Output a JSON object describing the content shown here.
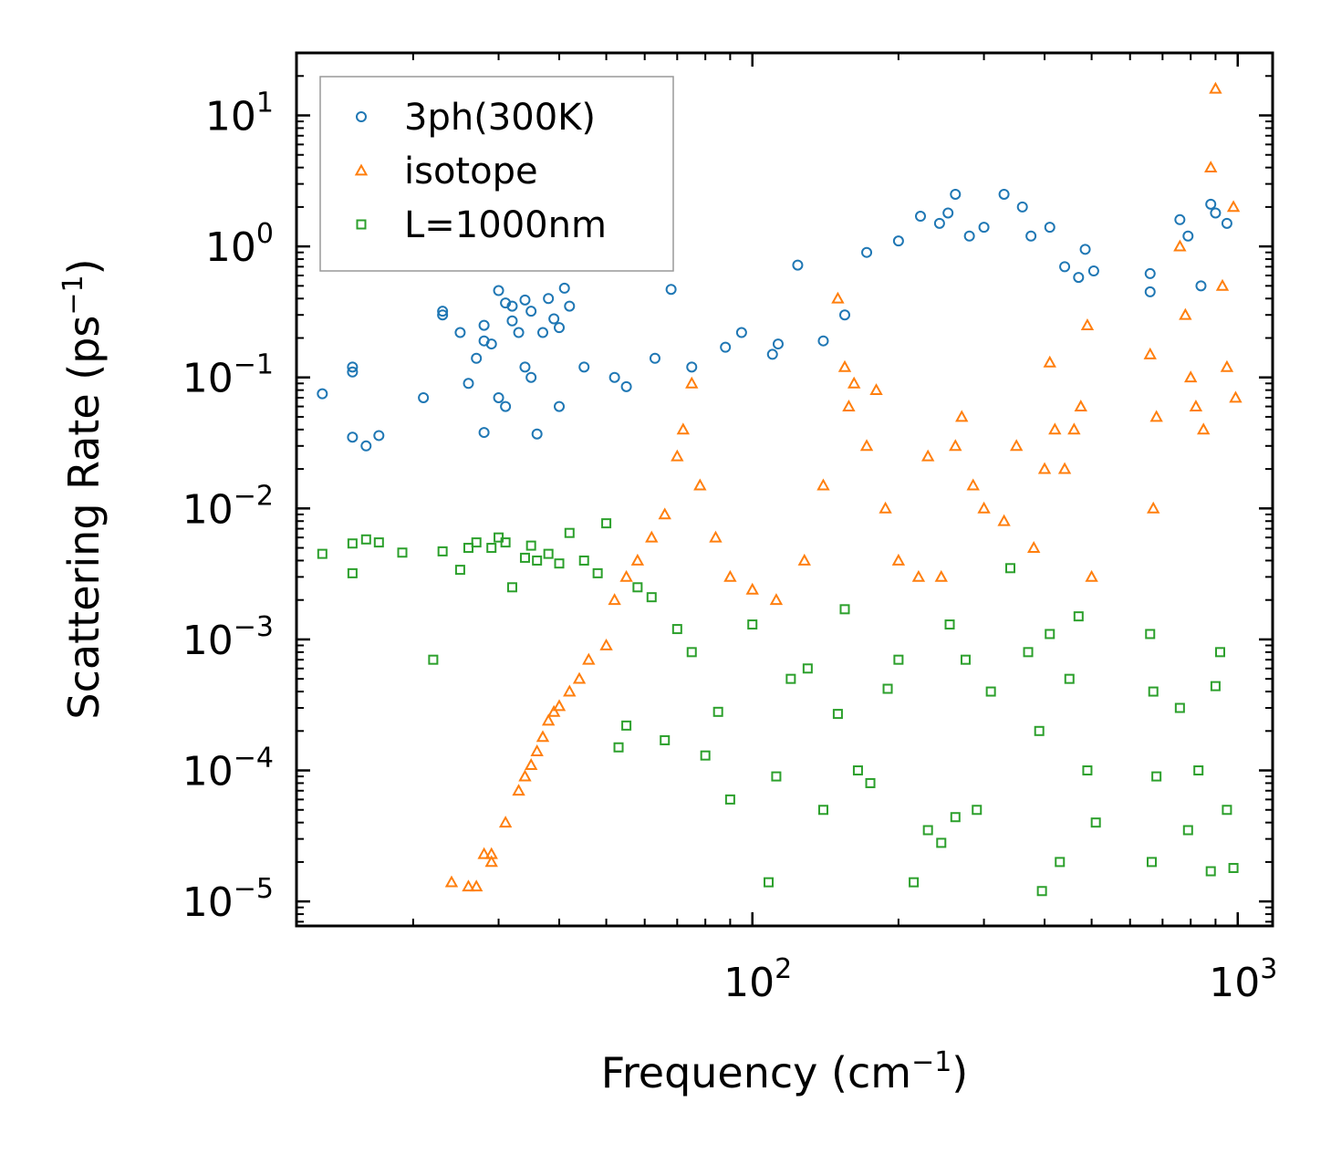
{
  "chart_data": {
    "type": "scatter",
    "xscale": "log",
    "yscale": "log",
    "xlabel": "Frequency (cm",
    "xlabel_sup": "−1",
    "xlabel_tail": ")",
    "ylabel": "Scattering Rate (ps",
    "ylabel_sup": "−1",
    "ylabel_tail": ")",
    "xlim": [
      11.5,
      1180
    ],
    "ylim": [
      6.5e-06,
      30
    ],
    "x_ticks": [
      {
        "value": 100,
        "base": "10",
        "exp": "2"
      },
      {
        "value": 1000,
        "base": "10",
        "exp": "3"
      }
    ],
    "y_ticks": [
      {
        "value": 10,
        "base": "10",
        "exp": "1"
      },
      {
        "value": 1,
        "base": "10",
        "exp": "0"
      },
      {
        "value": 0.1,
        "base": "10",
        "exp": "−1"
      },
      {
        "value": 0.01,
        "base": "10",
        "exp": "−2"
      },
      {
        "value": 0.001,
        "base": "10",
        "exp": "−3"
      },
      {
        "value": 0.0001,
        "base": "10",
        "exp": "−4"
      },
      {
        "value": 1e-05,
        "base": "10",
        "exp": "−5"
      }
    ],
    "legend_position": "top-left",
    "series": [
      {
        "name": "3ph(300K)",
        "marker": "circle",
        "color": "#1f77b4",
        "points": [
          [
            13,
            0.075
          ],
          [
            15,
            0.12
          ],
          [
            15,
            0.11
          ],
          [
            15,
            0.035
          ],
          [
            16,
            0.03
          ],
          [
            17,
            0.036
          ],
          [
            21,
            0.07
          ],
          [
            23,
            0.3
          ],
          [
            23,
            0.32
          ],
          [
            25,
            0.22
          ],
          [
            26,
            0.09
          ],
          [
            27,
            0.14
          ],
          [
            28,
            0.25
          ],
          [
            28,
            0.038
          ],
          [
            28,
            0.19
          ],
          [
            29,
            0.18
          ],
          [
            30,
            0.07
          ],
          [
            30,
            0.46
          ],
          [
            31,
            0.06
          ],
          [
            31,
            0.37
          ],
          [
            32,
            0.35
          ],
          [
            32,
            0.27
          ],
          [
            33,
            0.22
          ],
          [
            34,
            0.39
          ],
          [
            34,
            0.12
          ],
          [
            35,
            0.1
          ],
          [
            35,
            0.32
          ],
          [
            36,
            0.037
          ],
          [
            37,
            0.22
          ],
          [
            38,
            0.4
          ],
          [
            39,
            0.28
          ],
          [
            40,
            0.24
          ],
          [
            40,
            0.06
          ],
          [
            41,
            0.48
          ],
          [
            42,
            0.35
          ],
          [
            45,
            0.12
          ],
          [
            52,
            0.1
          ],
          [
            55,
            0.085
          ],
          [
            63,
            0.14
          ],
          [
            68,
            0.47
          ],
          [
            75,
            0.12
          ],
          [
            88,
            0.17
          ],
          [
            95,
            0.22
          ],
          [
            110,
            0.15
          ],
          [
            113,
            0.18
          ],
          [
            124,
            0.72
          ],
          [
            140,
            0.19
          ],
          [
            155,
            0.3
          ],
          [
            172,
            0.9
          ],
          [
            200,
            1.1
          ],
          [
            222,
            1.7
          ],
          [
            243,
            1.5
          ],
          [
            253,
            1.8
          ],
          [
            262,
            2.5
          ],
          [
            280,
            1.2
          ],
          [
            300,
            1.4
          ],
          [
            330,
            2.5
          ],
          [
            360,
            2.0
          ],
          [
            375,
            1.2
          ],
          [
            410,
            1.4
          ],
          [
            440,
            0.7
          ],
          [
            470,
            0.58
          ],
          [
            485,
            0.95
          ],
          [
            505,
            0.65
          ],
          [
            660,
            0.62
          ],
          [
            660,
            0.45
          ],
          [
            760,
            1.6
          ],
          [
            790,
            1.2
          ],
          [
            840,
            0.5
          ],
          [
            880,
            2.1
          ],
          [
            900,
            1.8
          ],
          [
            950,
            1.5
          ]
        ]
      },
      {
        "name": "isotope",
        "marker": "triangle",
        "color": "#ff7f0e",
        "points": [
          [
            24,
            1.4e-05
          ],
          [
            26,
            1.3e-05
          ],
          [
            27,
            1.3e-05
          ],
          [
            28,
            2.3e-05
          ],
          [
            29,
            2.3e-05
          ],
          [
            29,
            2e-05
          ],
          [
            31,
            4e-05
          ],
          [
            33,
            7e-05
          ],
          [
            34,
            9e-05
          ],
          [
            35,
            0.00011
          ],
          [
            36,
            0.00014
          ],
          [
            37,
            0.00018
          ],
          [
            38,
            0.00024
          ],
          [
            39,
            0.00028
          ],
          [
            40,
            0.00031
          ],
          [
            42,
            0.0004
          ],
          [
            44,
            0.0005
          ],
          [
            46,
            0.0007
          ],
          [
            50,
            0.0009
          ],
          [
            52,
            0.002
          ],
          [
            55,
            0.003
          ],
          [
            58,
            0.004
          ],
          [
            62,
            0.006
          ],
          [
            66,
            0.009
          ],
          [
            70,
            0.025
          ],
          [
            72,
            0.04
          ],
          [
            75,
            0.09
          ],
          [
            78,
            0.015
          ],
          [
            84,
            0.006
          ],
          [
            90,
            0.003
          ],
          [
            100,
            0.0024
          ],
          [
            112,
            0.002
          ],
          [
            128,
            0.004
          ],
          [
            140,
            0.015
          ],
          [
            150,
            0.4
          ],
          [
            155,
            0.12
          ],
          [
            158,
            0.06
          ],
          [
            162,
            0.09
          ],
          [
            172,
            0.03
          ],
          [
            180,
            0.08
          ],
          [
            188,
            0.01
          ],
          [
            200,
            0.004
          ],
          [
            220,
            0.003
          ],
          [
            230,
            0.025
          ],
          [
            245,
            0.003
          ],
          [
            262,
            0.03
          ],
          [
            270,
            0.05
          ],
          [
            285,
            0.015
          ],
          [
            300,
            0.01
          ],
          [
            330,
            0.008
          ],
          [
            350,
            0.03
          ],
          [
            380,
            0.005
          ],
          [
            400,
            0.02
          ],
          [
            410,
            0.13
          ],
          [
            420,
            0.04
          ],
          [
            440,
            0.02
          ],
          [
            460,
            0.04
          ],
          [
            475,
            0.06
          ],
          [
            490,
            0.25
          ],
          [
            500,
            0.003
          ],
          [
            660,
            0.15
          ],
          [
            670,
            0.01
          ],
          [
            680,
            0.05
          ],
          [
            760,
            1.0
          ],
          [
            780,
            0.3
          ],
          [
            800,
            0.1
          ],
          [
            820,
            0.06
          ],
          [
            850,
            0.04
          ],
          [
            880,
            4.0
          ],
          [
            900,
            16
          ],
          [
            930,
            0.5
          ],
          [
            950,
            0.12
          ],
          [
            980,
            2.0
          ],
          [
            990,
            0.07
          ]
        ]
      },
      {
        "name": "L=1000nm",
        "marker": "square",
        "color": "#2ca02c",
        "points": [
          [
            13,
            0.0045
          ],
          [
            15,
            0.0032
          ],
          [
            15,
            0.0054
          ],
          [
            16,
            0.0058
          ],
          [
            17,
            0.0055
          ],
          [
            19,
            0.0046
          ],
          [
            22,
            0.0007
          ],
          [
            23,
            0.0047
          ],
          [
            25,
            0.0034
          ],
          [
            26,
            0.005
          ],
          [
            27,
            0.0055
          ],
          [
            29,
            0.005
          ],
          [
            30,
            0.006
          ],
          [
            31,
            0.0055
          ],
          [
            32,
            0.0025
          ],
          [
            34,
            0.0042
          ],
          [
            35,
            0.0052
          ],
          [
            36,
            0.004
          ],
          [
            38,
            0.0045
          ],
          [
            40,
            0.0038
          ],
          [
            42,
            0.0065
          ],
          [
            45,
            0.004
          ],
          [
            48,
            0.0032
          ],
          [
            50,
            0.0077
          ],
          [
            53,
            0.00015
          ],
          [
            55,
            0.00022
          ],
          [
            58,
            0.0025
          ],
          [
            62,
            0.0021
          ],
          [
            66,
            0.00017
          ],
          [
            70,
            0.0012
          ],
          [
            75,
            0.0008
          ],
          [
            80,
            0.00013
          ],
          [
            85,
            0.00028
          ],
          [
            90,
            6e-05
          ],
          [
            100,
            0.0013
          ],
          [
            108,
            1.4e-05
          ],
          [
            112,
            9e-05
          ],
          [
            120,
            0.0005
          ],
          [
            130,
            0.0006
          ],
          [
            140,
            5e-05
          ],
          [
            150,
            0.00027
          ],
          [
            155,
            0.0017
          ],
          [
            165,
            0.0001
          ],
          [
            175,
            8e-05
          ],
          [
            190,
            0.00042
          ],
          [
            200,
            0.0007
          ],
          [
            215,
            1.4e-05
          ],
          [
            230,
            3.5e-05
          ],
          [
            245,
            2.8e-05
          ],
          [
            255,
            0.0013
          ],
          [
            262,
            4.4e-05
          ],
          [
            275,
            0.0007
          ],
          [
            290,
            5e-05
          ],
          [
            310,
            0.0004
          ],
          [
            340,
            0.0035
          ],
          [
            370,
            0.0008
          ],
          [
            390,
            0.0002
          ],
          [
            395,
            1.2e-05
          ],
          [
            410,
            0.0011
          ],
          [
            430,
            2e-05
          ],
          [
            450,
            0.0005
          ],
          [
            470,
            0.0015
          ],
          [
            490,
            0.0001
          ],
          [
            510,
            4e-05
          ],
          [
            660,
            0.0011
          ],
          [
            665,
            2e-05
          ],
          [
            670,
            0.0004
          ],
          [
            680,
            9e-05
          ],
          [
            760,
            0.0003
          ],
          [
            790,
            3.5e-05
          ],
          [
            830,
            0.0001
          ],
          [
            880,
            1.7e-05
          ],
          [
            900,
            0.00044
          ],
          [
            920,
            0.0008
          ],
          [
            950,
            5e-05
          ],
          [
            980,
            1.8e-05
          ]
        ]
      }
    ]
  }
}
